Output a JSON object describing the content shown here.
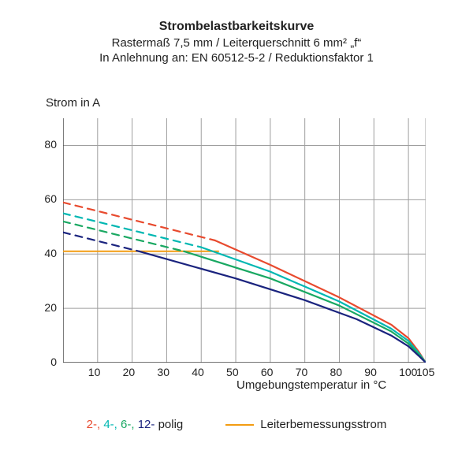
{
  "title": {
    "main": "Strombelastbarkeitskurve",
    "sub1": "Rastermaß 7,5 mm / Leiterquerschnitt 6 mm² „f“",
    "sub2": "In Anlehnung an: EN 60512-5-2 / Reduktionsfaktor 1",
    "fontsize_main": 16,
    "fontsize_sub": 15
  },
  "axes": {
    "ylabel": "Strom in A",
    "xlabel": "Umgebungstemperatur in °C",
    "xlim": [
      0,
      105
    ],
    "ylim": [
      0,
      90
    ],
    "xticks": [
      10,
      20,
      30,
      40,
      50,
      60,
      70,
      80,
      90,
      100,
      105
    ],
    "yticks": [
      0,
      20,
      40,
      60,
      80
    ],
    "label_fontsize": 15,
    "tick_fontsize": 14,
    "grid_color": "#9e9e9e",
    "axis_color": "#444444",
    "grid_width": 1,
    "axis_width": 1.4
  },
  "chart": {
    "type": "line",
    "background_color": "#ffffff",
    "series": [
      {
        "id": "rated",
        "label": "Leiterbemessungsstrom",
        "color": "#f39c12",
        "dash": "solid",
        "width": 2,
        "points": [
          [
            0,
            41
          ],
          [
            45,
            41
          ]
        ]
      },
      {
        "id": "2pole-dash",
        "color": "#e84a2e",
        "dash": "dashed",
        "width": 2.2,
        "points": [
          [
            0,
            59
          ],
          [
            44,
            45
          ]
        ]
      },
      {
        "id": "2pole-solid",
        "color": "#e84a2e",
        "dash": "solid",
        "width": 2.2,
        "points": [
          [
            44,
            45
          ],
          [
            60,
            36
          ],
          [
            80,
            24
          ],
          [
            95,
            14
          ],
          [
            100,
            9
          ],
          [
            103,
            4
          ],
          [
            105,
            0
          ]
        ]
      },
      {
        "id": "4pole-dash",
        "color": "#00b7b2",
        "dash": "dashed",
        "width": 2.2,
        "points": [
          [
            0,
            55
          ],
          [
            40,
            42.5
          ]
        ]
      },
      {
        "id": "4pole-solid",
        "color": "#00b7b2",
        "dash": "solid",
        "width": 2.2,
        "points": [
          [
            40,
            42.5
          ],
          [
            60,
            33.5
          ],
          [
            80,
            22.5
          ],
          [
            95,
            12.5
          ],
          [
            100,
            8
          ],
          [
            103,
            3.5
          ],
          [
            105,
            0
          ]
        ]
      },
      {
        "id": "6pole-dash",
        "color": "#19a862",
        "dash": "dashed",
        "width": 2.2,
        "points": [
          [
            0,
            52
          ],
          [
            35,
            41
          ]
        ]
      },
      {
        "id": "6pole-solid",
        "color": "#19a862",
        "dash": "solid",
        "width": 2.2,
        "points": [
          [
            35,
            41
          ],
          [
            60,
            31
          ],
          [
            80,
            21
          ],
          [
            95,
            11.5
          ],
          [
            100,
            7
          ],
          [
            103,
            3
          ],
          [
            105,
            0
          ]
        ]
      },
      {
        "id": "12pole-dash",
        "color": "#1a237e",
        "dash": "dashed",
        "width": 2.2,
        "points": [
          [
            0,
            48
          ],
          [
            22,
            41
          ]
        ]
      },
      {
        "id": "12pole-solid",
        "color": "#1a237e",
        "dash": "solid",
        "width": 2.2,
        "points": [
          [
            22,
            41
          ],
          [
            50,
            31
          ],
          [
            70,
            23
          ],
          [
            85,
            16
          ],
          [
            95,
            10
          ],
          [
            100,
            6
          ],
          [
            103,
            2.5
          ],
          [
            105,
            0
          ]
        ]
      }
    ]
  },
  "legend": {
    "poles": [
      {
        "label": "2-",
        "color": "#e84a2e"
      },
      {
        "label": "4-",
        "color": "#00b7b2"
      },
      {
        "label": "6-",
        "color": "#19a862"
      },
      {
        "label": "12-",
        "color": "#1a237e"
      }
    ],
    "poles_suffix": " polig",
    "rated_label": "Leiterbemessungsstrom",
    "rated_color": "#f39c12",
    "fontsize": 15
  }
}
